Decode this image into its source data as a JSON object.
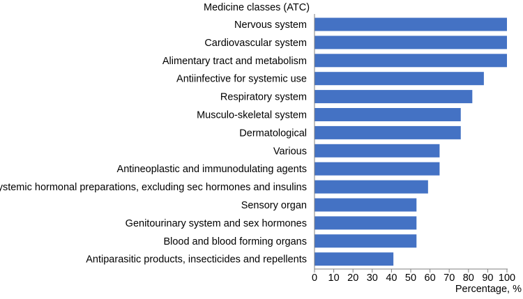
{
  "chart_data": {
    "type": "bar",
    "orientation": "horizontal",
    "ylabel": "Medicine classes (ATC)",
    "xlabel": "Percentage, %",
    "categories": [
      "Nervous system",
      "Cardiovascular system",
      "Alimentary tract and metabolism",
      "Antiinfective for systemic use",
      "Respiratory system",
      "Musculo-skeletal system",
      "Dermatological",
      "Various",
      "Antineoplastic and immunodulating agents",
      "Systemic hormonal preparations, excluding sec hormones and insulins",
      "Sensory organ",
      "Genitourinary system and sex hormones",
      "Blood and blood forming organs",
      "Antiparasitic products, insecticides and repellents"
    ],
    "values": [
      100,
      100,
      100,
      88,
      82,
      76,
      76,
      65,
      65,
      59,
      53,
      53,
      53,
      41
    ],
    "xlim": [
      0,
      100
    ],
    "xticks": [
      0,
      10,
      20,
      30,
      40,
      50,
      60,
      70,
      80,
      90,
      100
    ],
    "grid": false,
    "legend": "none",
    "bar_color": "#4472C4"
  }
}
